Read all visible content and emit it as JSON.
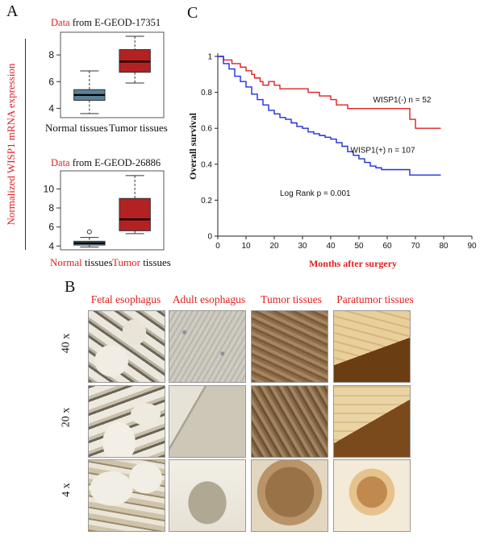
{
  "panel_labels": {
    "a": "A",
    "b": "B",
    "c": "C"
  },
  "panel_a": {
    "ylabel": "Normalized WISP1 mRNA expression",
    "plot1": {
      "title_data": "Data",
      "title_rest": " from E-GEOD-17351",
      "xcat": [
        "Normal tissues",
        "Tumor tissues"
      ]
    },
    "plot2": {
      "title_data": "Data",
      "title_rest": " from E-GEOD-26886",
      "xcat_red": [
        "Normal",
        "Tumor"
      ],
      "xcat_black": [
        " tissues",
        " tissues"
      ]
    }
  },
  "panel_b": {
    "columns": [
      "Fetal esophagus",
      "Adult esophagus",
      "Tumor tissues",
      "Paratumor tissues"
    ],
    "rows": [
      "40 x",
      "20 x",
      "4 x"
    ]
  },
  "colors": {
    "red": "#e02020",
    "blue": "#1f2ee0",
    "box_normal": "#5a8296",
    "box_tumor": "#b22222"
  },
  "chart_data": [
    {
      "type": "box",
      "title": "Data from E-GEOD-17351",
      "categories": [
        "Normal tissues",
        "Tumor tissues"
      ],
      "ylabel": "Normalized WISP1 mRNA expression",
      "ylim": [
        3.3,
        9.7
      ],
      "yticks": [
        4,
        6,
        8
      ],
      "boxes": [
        {
          "name": "Normal tissues",
          "min": 3.6,
          "q1": 4.6,
          "median": 5.0,
          "q3": 5.4,
          "max": 6.8,
          "outliers": []
        },
        {
          "name": "Tumor tissues",
          "min": 5.9,
          "q1": 6.7,
          "median": 7.5,
          "q3": 8.4,
          "max": 9.4,
          "outliers": []
        }
      ]
    },
    {
      "type": "box",
      "title": "Data from E-GEOD-26886",
      "categories": [
        "Normal tissues",
        "Tumor tissues"
      ],
      "ylabel": "Normalized WISP1 mRNA expression",
      "ylim": [
        3.6,
        11.9
      ],
      "yticks": [
        4,
        6,
        8,
        10
      ],
      "boxes": [
        {
          "name": "Normal tissues",
          "min": 3.9,
          "q1": 4.1,
          "median": 4.3,
          "q3": 4.5,
          "max": 4.9,
          "outliers": [
            5.5
          ]
        },
        {
          "name": "Tumor tissues",
          "min": 5.3,
          "q1": 5.6,
          "median": 6.8,
          "q3": 9.0,
          "max": 11.4,
          "outliers": []
        }
      ]
    },
    {
      "type": "line",
      "title": "",
      "xlabel": "Months after surgery",
      "ylabel": "Overall survival",
      "xlim": [
        0,
        90
      ],
      "ylim": [
        0,
        1.0
      ],
      "xticks": [
        0,
        10,
        20,
        30,
        40,
        50,
        60,
        70,
        80,
        90
      ],
      "yticks": [
        0,
        0.2,
        0.4,
        0.6,
        0.8,
        1
      ],
      "annotation": "Log Rank p = 0.001",
      "series": [
        {
          "name": "WISP1(-) n = 52",
          "color": "#e02020",
          "step": true,
          "x": [
            0,
            2,
            5,
            8,
            10,
            12,
            13,
            15,
            16,
            18,
            20,
            22,
            25,
            32,
            36,
            40,
            42,
            46,
            48,
            58,
            62,
            68,
            70,
            79
          ],
          "y": [
            1.0,
            0.98,
            0.96,
            0.94,
            0.92,
            0.9,
            0.88,
            0.86,
            0.84,
            0.86,
            0.84,
            0.82,
            0.82,
            0.8,
            0.78,
            0.76,
            0.73,
            0.71,
            0.71,
            0.71,
            0.71,
            0.65,
            0.6,
            0.6
          ]
        },
        {
          "name": "WISP1(+) n = 107",
          "color": "#1f2ee0",
          "step": true,
          "x": [
            0,
            2,
            4,
            6,
            8,
            10,
            12,
            14,
            16,
            18,
            20,
            22,
            24,
            26,
            28,
            30,
            32,
            34,
            36,
            38,
            40,
            42,
            44,
            46,
            48,
            50,
            52,
            54,
            56,
            58,
            60,
            62,
            64,
            66,
            68,
            70,
            72,
            74,
            76,
            79
          ],
          "y": [
            1.0,
            0.96,
            0.93,
            0.89,
            0.86,
            0.83,
            0.79,
            0.76,
            0.73,
            0.7,
            0.68,
            0.66,
            0.65,
            0.63,
            0.61,
            0.6,
            0.58,
            0.57,
            0.56,
            0.55,
            0.54,
            0.52,
            0.5,
            0.47,
            0.45,
            0.43,
            0.41,
            0.39,
            0.38,
            0.37,
            0.37,
            0.37,
            0.37,
            0.37,
            0.34,
            0.34,
            0.34,
            0.34,
            0.34,
            0.34
          ]
        }
      ]
    }
  ]
}
